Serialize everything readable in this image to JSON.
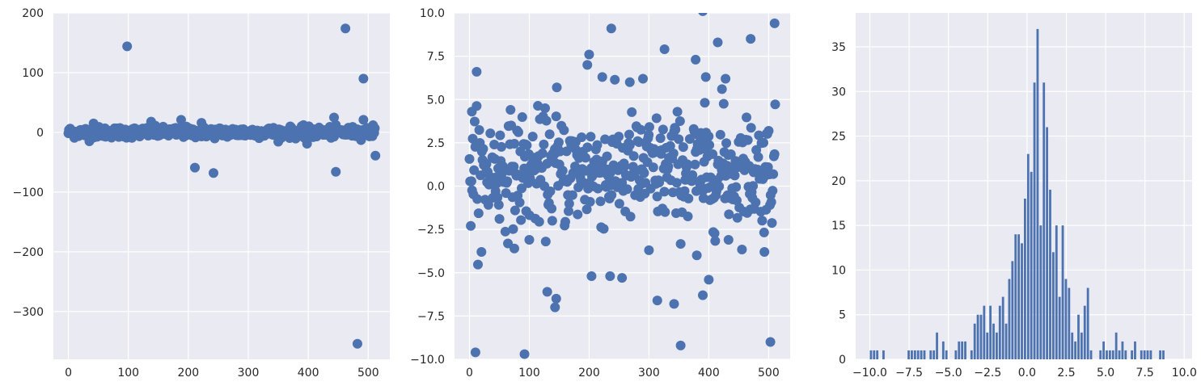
{
  "style": {
    "axes_face": "#EAEAF2",
    "grid": "#FFFFFF",
    "marker": "#4C72B0",
    "text": "#262626"
  },
  "chart_data": [
    {
      "type": "scatter",
      "title": "",
      "xlabel": "",
      "ylabel": "",
      "xlim": [
        -25,
        536
      ],
      "ylim": [
        -380,
        200
      ],
      "grid": true,
      "xticks": [
        0,
        100,
        200,
        300,
        400,
        500
      ],
      "xtick_labels": [
        "0",
        "100",
        "200",
        "300",
        "400",
        "500"
      ],
      "yticks": [
        200,
        100,
        0,
        -100,
        -200,
        -300
      ],
      "ytick_labels": [
        "200",
        "100",
        "0",
        "−100",
        "−200",
        "−300"
      ],
      "outliers": [
        {
          "x": 98,
          "y": 144
        },
        {
          "x": 462,
          "y": 174
        },
        {
          "x": 492,
          "y": 90
        },
        {
          "x": 482,
          "y": -354
        },
        {
          "x": 211,
          "y": -59
        },
        {
          "x": 242,
          "y": -68
        },
        {
          "x": 446,
          "y": -66
        },
        {
          "x": 512,
          "y": -39
        },
        {
          "x": 398,
          "y": -19
        },
        {
          "x": 443,
          "y": 25
        },
        {
          "x": 492,
          "y": 21
        },
        {
          "x": 188,
          "y": 21
        },
        {
          "x": 222,
          "y": 16
        },
        {
          "x": 42,
          "y": 15
        },
        {
          "x": 138,
          "y": 18
        },
        {
          "x": 35,
          "y": -15
        },
        {
          "x": 508,
          "y": 12
        }
      ],
      "bulk": {
        "n": 512,
        "x_min": 0,
        "x_max": 511,
        "y_spread": 4.5
      }
    },
    {
      "type": "scatter",
      "title": "",
      "xlabel": "",
      "ylabel": "",
      "xlim": [
        -25,
        536
      ],
      "ylim": [
        -10,
        10
      ],
      "grid": true,
      "xticks": [
        0,
        100,
        200,
        300,
        400,
        500
      ],
      "xtick_labels": [
        "0",
        "100",
        "200",
        "300",
        "400",
        "500"
      ],
      "yticks": [
        10,
        7.5,
        5,
        2.5,
        0,
        -2.5,
        -5,
        -7.5,
        -10
      ],
      "ytick_labels": [
        "10.0",
        "7.5",
        "5.0",
        "2.5",
        "0.0",
        "−2.5",
        "−5.0",
        "−7.5",
        "−10.0"
      ],
      "clip": true,
      "highlights": [
        {
          "x": 4,
          "y": 4.3
        },
        {
          "x": 12,
          "y": 6.6
        },
        {
          "x": 10,
          "y": -9.6
        },
        {
          "x": 92,
          "y": -9.7
        },
        {
          "x": 237,
          "y": 9.1
        },
        {
          "x": 390,
          "y": 10.1
        },
        {
          "x": 510,
          "y": 9.4
        },
        {
          "x": 470,
          "y": 8.5
        },
        {
          "x": 326,
          "y": 7.9
        },
        {
          "x": 200,
          "y": 7.6
        },
        {
          "x": 197,
          "y": 7.0
        },
        {
          "x": 415,
          "y": 8.3
        },
        {
          "x": 146,
          "y": 5.7
        },
        {
          "x": 130,
          "y": -6.1
        },
        {
          "x": 143,
          "y": -7.0
        },
        {
          "x": 145,
          "y": -6.5
        },
        {
          "x": 204,
          "y": -5.2
        },
        {
          "x": 235,
          "y": -5.2
        },
        {
          "x": 255,
          "y": -5.3
        },
        {
          "x": 314,
          "y": -6.6
        },
        {
          "x": 342,
          "y": -6.8
        },
        {
          "x": 353,
          "y": -9.2
        },
        {
          "x": 503,
          "y": -9.0
        },
        {
          "x": 390,
          "y": -6.3
        },
        {
          "x": 20,
          "y": -3.8
        },
        {
          "x": 75,
          "y": -3.6
        },
        {
          "x": 100,
          "y": -3.1
        },
        {
          "x": 300,
          "y": -3.7
        },
        {
          "x": 380,
          "y": -4.0
        },
        {
          "x": 400,
          "y": -5.4
        },
        {
          "x": 433,
          "y": -3.1
        },
        {
          "x": 493,
          "y": -3.8
        },
        {
          "x": 268,
          "y": 6.0
        },
        {
          "x": 290,
          "y": 6.2
        },
        {
          "x": 222,
          "y": 6.3
        },
        {
          "x": 378,
          "y": 7.3
        },
        {
          "x": 395,
          "y": 6.3
        },
        {
          "x": 422,
          "y": 5.6
        },
        {
          "x": 428,
          "y": 6.2
        }
      ],
      "bulk": {
        "n": 470,
        "x_min": 0,
        "x_max": 511,
        "center": 0.9,
        "spread": 1.6
      }
    },
    {
      "type": "bar",
      "title": "",
      "xlabel": "",
      "ylabel": "",
      "xlim": [
        -10.9,
        10.5
      ],
      "ylim": [
        0,
        38.8
      ],
      "grid": true,
      "xticks": [
        -10,
        -7.5,
        -5,
        -2.5,
        0,
        2.5,
        5,
        7.5,
        10
      ],
      "xtick_labels": [
        "−10.0",
        "−7.5",
        "−5.0",
        "−2.5",
        "0.0",
        "2.5",
        "5.0",
        "7.5",
        "10.0"
      ],
      "yticks": [
        0,
        5,
        10,
        15,
        20,
        25,
        30,
        35
      ],
      "ytick_labels": [
        "0",
        "5",
        "10",
        "15",
        "20",
        "25",
        "30",
        "35"
      ],
      "bin_width": 0.2,
      "bins": [
        [
          -10.0,
          1
        ],
        [
          -9.8,
          1
        ],
        [
          -9.6,
          1
        ],
        [
          -9.2,
          1
        ],
        [
          -7.6,
          1
        ],
        [
          -7.4,
          1
        ],
        [
          -7.2,
          1
        ],
        [
          -7.0,
          1
        ],
        [
          -6.8,
          1
        ],
        [
          -6.6,
          1
        ],
        [
          -6.2,
          1
        ],
        [
          -6.0,
          1
        ],
        [
          -5.8,
          3
        ],
        [
          -5.4,
          2
        ],
        [
          -5.2,
          1
        ],
        [
          -4.6,
          1
        ],
        [
          -4.4,
          2
        ],
        [
          -4.2,
          2
        ],
        [
          -4.0,
          2
        ],
        [
          -3.6,
          1
        ],
        [
          -3.4,
          4
        ],
        [
          -3.2,
          5
        ],
        [
          -3.0,
          5
        ],
        [
          -2.8,
          6
        ],
        [
          -2.6,
          3
        ],
        [
          -2.4,
          6
        ],
        [
          -2.2,
          4
        ],
        [
          -2.0,
          3
        ],
        [
          -1.8,
          6
        ],
        [
          -1.6,
          7
        ],
        [
          -1.4,
          4
        ],
        [
          -1.2,
          9
        ],
        [
          -1.0,
          11
        ],
        [
          -0.8,
          14
        ],
        [
          -0.6,
          14
        ],
        [
          -0.4,
          13
        ],
        [
          -0.2,
          18
        ],
        [
          0.0,
          23
        ],
        [
          0.2,
          21
        ],
        [
          0.4,
          31
        ],
        [
          0.6,
          37
        ],
        [
          0.8,
          15
        ],
        [
          1.0,
          31
        ],
        [
          1.2,
          26
        ],
        [
          1.4,
          19
        ],
        [
          1.6,
          12
        ],
        [
          1.8,
          15
        ],
        [
          2.0,
          7
        ],
        [
          2.2,
          15
        ],
        [
          2.4,
          9
        ],
        [
          2.6,
          8
        ],
        [
          2.8,
          3
        ],
        [
          3.0,
          2
        ],
        [
          3.2,
          5
        ],
        [
          3.4,
          3
        ],
        [
          3.6,
          6
        ],
        [
          3.8,
          8
        ],
        [
          4.0,
          1
        ],
        [
          4.6,
          1
        ],
        [
          4.8,
          2
        ],
        [
          5.0,
          1
        ],
        [
          5.2,
          1
        ],
        [
          5.4,
          1
        ],
        [
          5.6,
          3
        ],
        [
          5.8,
          1
        ],
        [
          6.0,
          2
        ],
        [
          6.2,
          1
        ],
        [
          6.6,
          1
        ],
        [
          6.8,
          2
        ],
        [
          7.2,
          1
        ],
        [
          7.4,
          1
        ],
        [
          7.6,
          1
        ],
        [
          7.8,
          1
        ],
        [
          8.4,
          1
        ],
        [
          8.6,
          1
        ]
      ]
    }
  ]
}
